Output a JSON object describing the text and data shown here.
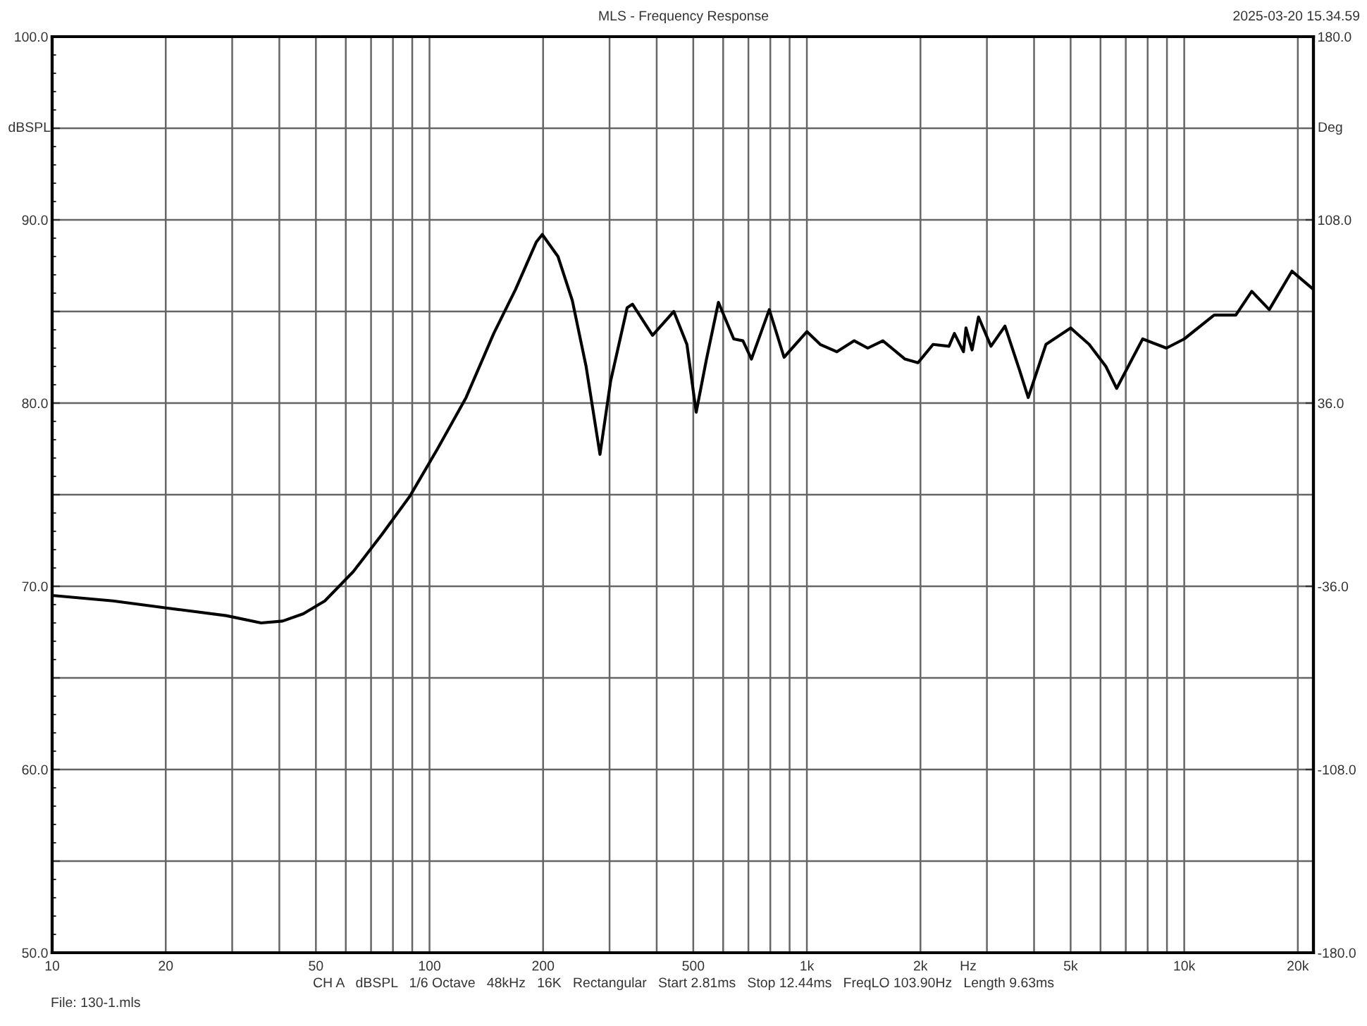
{
  "chart_data": {
    "type": "line",
    "title": "MLS - Frequency Response",
    "xlabel": "Hz",
    "ylabel": "dBSPL",
    "y2label": "Deg",
    "log": "x",
    "grid": true,
    "marker": "none",
    "line_style": "solid",
    "xlim": [
      10,
      22000
    ],
    "xticks": [
      10,
      20,
      {
        "value": 30,
        "label": null
      },
      {
        "value": 40,
        "label": null
      },
      50,
      {
        "value": 60,
        "label": null
      },
      {
        "value": 70,
        "label": null
      },
      {
        "value": 80,
        "label": null
      },
      {
        "value": 90,
        "label": null
      },
      100,
      200,
      {
        "value": 300,
        "label": null
      },
      {
        "value": 400,
        "label": null
      },
      500,
      {
        "value": 600,
        "label": null
      },
      {
        "value": 700,
        "label": null
      },
      {
        "value": 800,
        "label": null
      },
      {
        "value": 900,
        "label": null
      },
      {
        "value": 1000,
        "label": "1k"
      },
      {
        "value": 2000,
        "label": "2k"
      },
      {
        "value": 3000,
        "label": null
      },
      {
        "value": 4000,
        "label": null
      },
      {
        "value": 5000,
        "label": "5k"
      },
      {
        "value": 6000,
        "label": null
      },
      {
        "value": 7000,
        "label": null
      },
      {
        "value": 8000,
        "label": null
      },
      {
        "value": 9000,
        "label": null
      },
      {
        "value": 10000,
        "label": "10k"
      },
      {
        "value": 20000,
        "label": "20k"
      }
    ],
    "ylim": [
      50,
      100
    ],
    "yticks": [
      {
        "value": 50,
        "label": "50.0"
      },
      {
        "value": 55,
        "label": null
      },
      {
        "value": 60,
        "label": "60.0"
      },
      {
        "value": 65,
        "label": null
      },
      {
        "value": 70,
        "label": "70.0"
      },
      {
        "value": 75,
        "label": null
      },
      {
        "value": 80,
        "label": "80.0"
      },
      {
        "value": 85,
        "label": null
      },
      {
        "value": 90,
        "label": "90.0"
      },
      {
        "value": 95,
        "label": null
      },
      {
        "value": 100,
        "label": "100.0"
      }
    ],
    "y2lim": [
      -180,
      180
    ],
    "y2ticks": [
      {
        "value": -180,
        "label": "-180.0"
      },
      {
        "value": -108,
        "label": "-108.0"
      },
      {
        "value": -36,
        "label": "-36.0"
      },
      {
        "value": 36,
        "label": "36.0"
      },
      {
        "value": 108,
        "label": "108.0"
      },
      {
        "value": 180,
        "label": "180.0"
      }
    ],
    "annotations": [
      "2025-03-20 15.34.59",
      "CH A   dBSPL   1/6 Octave   48kHz   16K   Rectangular   Start 2.81ms   Stop 12.44ms   FreqLO 103.90Hz   Length 9.63ms",
      "File: 130-1.mls"
    ],
    "series": [
      {
        "color": "#000000",
        "x": [
          10,
          14.5,
          20.4,
          28.9,
          35.8,
          40.8,
          46.3,
          52.8,
          62.8,
          74.6,
          88.6,
          105,
          125,
          148,
          169,
          192,
          199,
          219,
          239,
          260,
          283,
          302,
          334,
          345,
          390,
          444,
          481,
          509,
          542,
          583,
          640,
          677,
          713,
          795,
          870,
          1000,
          1085,
          1200,
          1335,
          1450,
          1590,
          1820,
          1970,
          2160,
          2380,
          2460,
          2600,
          2640,
          2740,
          2850,
          3075,
          3350,
          3660,
          3860,
          4300,
          5000,
          5600,
          6200,
          6620,
          7760,
          8970,
          10000,
          12000,
          13700,
          15100,
          16800,
          19300,
          22000
        ],
        "values": [
          69.5,
          69.2,
          68.8,
          68.4,
          68.0,
          68.1,
          68.5,
          69.2,
          70.8,
          72.8,
          74.9,
          77.5,
          80.3,
          83.8,
          86.2,
          88.8,
          89.2,
          88.0,
          85.6,
          82.0,
          77.2,
          81.2,
          85.2,
          85.4,
          83.7,
          85.0,
          83.2,
          79.5,
          82.4,
          85.5,
          83.5,
          83.4,
          82.4,
          85.1,
          82.5,
          83.9,
          83.2,
          82.8,
          83.4,
          83.0,
          83.4,
          82.4,
          82.2,
          83.2,
          83.1,
          83.8,
          82.8,
          84.1,
          82.9,
          84.7,
          83.1,
          84.2,
          81.8,
          80.3,
          83.2,
          84.1,
          83.2,
          82.0,
          80.8,
          83.5,
          83.0,
          83.5,
          84.8,
          84.8,
          86.1,
          85.1,
          87.2,
          86.2
        ]
      }
    ]
  }
}
